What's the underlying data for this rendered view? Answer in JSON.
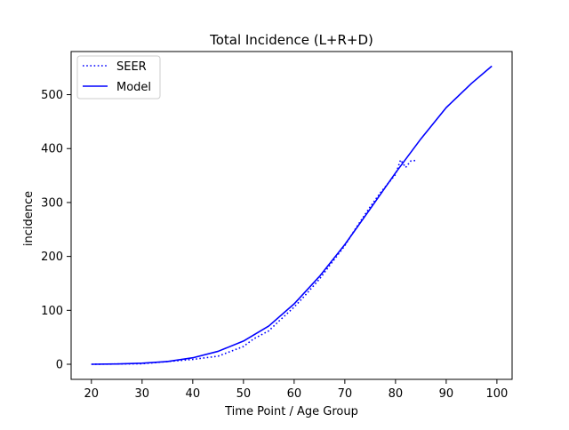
{
  "chart_data": {
    "type": "line",
    "title": "Total Incidence (L+R+D)",
    "xlabel": "Time Point / Age Group",
    "ylabel": "incidence",
    "xlim": [
      16,
      103
    ],
    "ylim": [
      -28,
      580
    ],
    "xticks": [
      20,
      30,
      40,
      50,
      60,
      70,
      80,
      90,
      100
    ],
    "yticks": [
      0,
      100,
      200,
      300,
      400,
      500
    ],
    "grid": false,
    "legend": {
      "position": "top-left",
      "entries": [
        "SEER",
        "Model"
      ]
    },
    "series": [
      {
        "name": "SEER",
        "color": "#0000ff",
        "style": "dotted",
        "x": [
          20,
          25,
          30,
          35,
          40,
          45,
          50,
          52,
          55,
          57,
          60,
          62,
          65,
          67,
          70,
          72,
          75,
          77,
          80,
          81,
          82,
          83,
          84
        ],
        "y": [
          0,
          0.5,
          1,
          5,
          9,
          15,
          33,
          47,
          62,
          80,
          106,
          126,
          158,
          183,
          220,
          250,
          292,
          318,
          352,
          379,
          365,
          377,
          378
        ]
      },
      {
        "name": "Model",
        "color": "#0000ff",
        "style": "solid",
        "x": [
          20,
          25,
          30,
          35,
          40,
          45,
          50,
          55,
          60,
          65,
          70,
          75,
          80,
          85,
          90,
          95,
          99
        ],
        "y": [
          0,
          0.5,
          2,
          5,
          12,
          24,
          43,
          71,
          112,
          163,
          222,
          288,
          355,
          418,
          476,
          521,
          553
        ]
      }
    ]
  }
}
